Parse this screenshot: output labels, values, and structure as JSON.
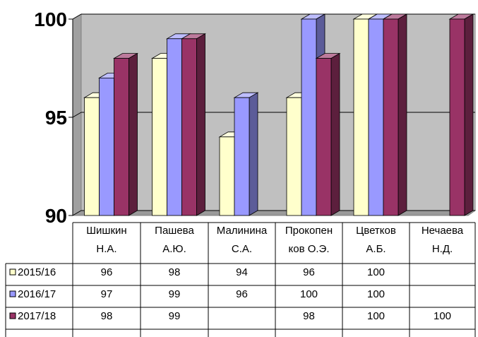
{
  "chart_data": {
    "type": "bar",
    "style": "3d-clustered-column-with-data-table",
    "categories": [
      [
        "Шишкин",
        "Н.А."
      ],
      [
        "Пашева",
        "А.Ю."
      ],
      [
        "Малинина",
        "С.А."
      ],
      [
        "Прокопен",
        "ков О.Э."
      ],
      [
        "Цветков",
        "А.Б."
      ],
      [
        "Нечаева",
        "Н.Д."
      ]
    ],
    "series": [
      {
        "name": "2015/16",
        "color": "#FFFFCC",
        "values": [
          96,
          98,
          94,
          96,
          100,
          null
        ]
      },
      {
        "name": "2016/17",
        "color": "#9999FF",
        "values": [
          97,
          99,
          96,
          100,
          100,
          null
        ]
      },
      {
        "name": "2017/18",
        "color": "#993366",
        "values": [
          98,
          99,
          null,
          98,
          100,
          100
        ]
      }
    ],
    "ylim": [
      90,
      100
    ],
    "yticks": [
      "90",
      "95",
      "100"
    ],
    "grid": true,
    "plot_background": "#C0C0C0",
    "legend_placement": "data-table-left",
    "data_table": [
      [
        "96",
        "98",
        "94",
        "96",
        "100",
        ""
      ],
      [
        "97",
        "99",
        "96",
        "100",
        "100",
        ""
      ],
      [
        "98",
        "99",
        "",
        "98",
        "100",
        "100"
      ]
    ]
  }
}
